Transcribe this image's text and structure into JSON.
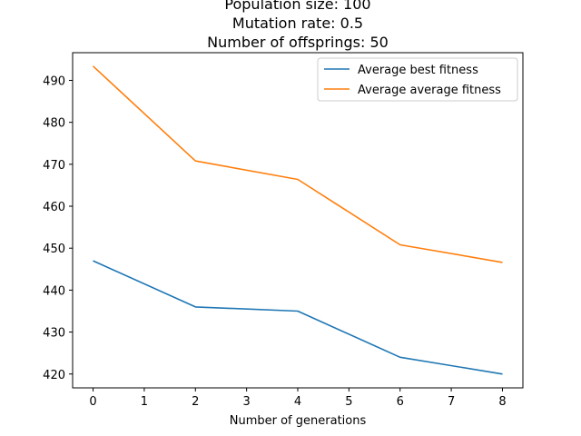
{
  "chart_data": {
    "type": "line",
    "title_lines": [
      "Population size: 100",
      "Mutation rate: 0.5",
      "Number of offsprings: 50"
    ],
    "xlabel": "Number of generations",
    "ylabel": "",
    "xlim": [
      -0.4,
      8.4
    ],
    "ylim": [
      416.7,
      496.6
    ],
    "xticks": [
      0,
      1,
      2,
      3,
      4,
      5,
      6,
      7,
      8
    ],
    "yticks": [
      420,
      430,
      440,
      450,
      460,
      470,
      480,
      490
    ],
    "x": [
      0,
      2,
      4,
      6,
      8
    ],
    "series": [
      {
        "name": "Average best fitness",
        "color": "#1f77b4",
        "values": [
          447.0,
          436.0,
          435.0,
          424.0,
          420.0
        ]
      },
      {
        "name": "Average average fitness",
        "color": "#ff7f0e",
        "values": [
          493.4,
          470.8,
          466.4,
          450.8,
          446.6
        ]
      }
    ],
    "legend_position": "upper-right",
    "grid": false
  }
}
